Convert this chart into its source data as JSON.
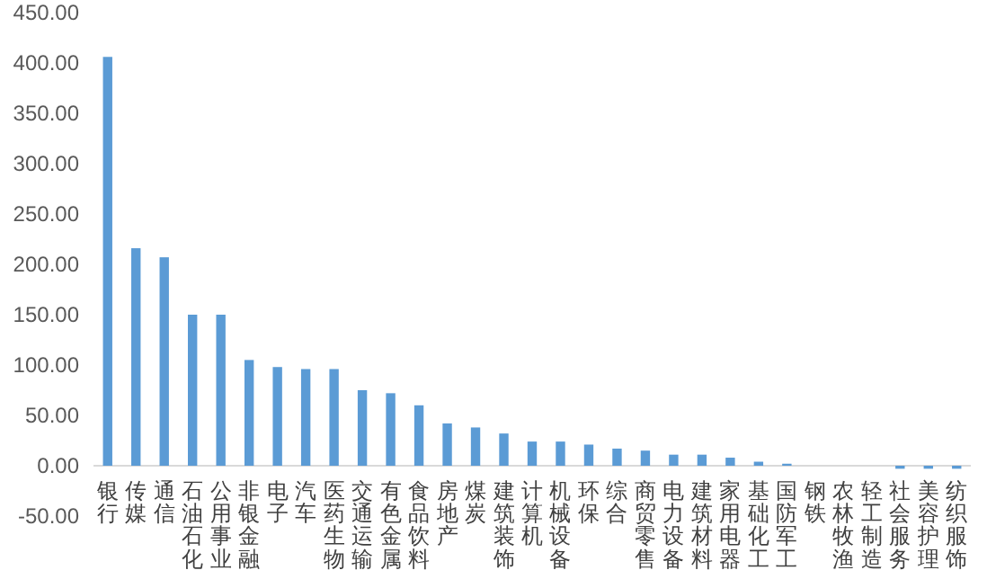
{
  "chart_data": {
    "type": "bar",
    "categories": [
      "银行",
      "传媒",
      "通信",
      "石油石化",
      "公用事业",
      "非银金融",
      "电子",
      "汽车",
      "医药生物",
      "交通运输",
      "有色金属",
      "食品饮料",
      "房地产",
      "煤炭",
      "建筑装饰",
      "计算机",
      "机械设备",
      "环保",
      "综合",
      "商贸零售",
      "电力设备",
      "建筑材料",
      "家用电器",
      "基础化工",
      "国防军工",
      "钢铁",
      "农林牧渔",
      "轻工制造",
      "社会服务",
      "美容护理",
      "纺织服饰"
    ],
    "values": [
      406,
      216,
      207,
      150,
      150,
      105,
      98,
      96,
      96,
      75,
      72,
      60,
      42,
      38,
      32,
      24,
      24,
      21,
      17,
      15,
      11,
      11,
      8,
      4,
      2,
      0,
      0,
      0,
      -3,
      -3,
      -3
    ],
    "color": "#5b9bd5",
    "ylim": [
      -50,
      450
    ],
    "yticks": [
      {
        "value": -50,
        "label": "-50.00"
      },
      {
        "value": 0,
        "label": "0.00"
      },
      {
        "value": 50,
        "label": "50.00"
      },
      {
        "value": 100,
        "label": "100.00"
      },
      {
        "value": 150,
        "label": "150.00"
      },
      {
        "value": 200,
        "label": "200.00"
      },
      {
        "value": 250,
        "label": "250.00"
      },
      {
        "value": 300,
        "label": "300.00"
      },
      {
        "value": 350,
        "label": "350.00"
      },
      {
        "value": 400,
        "label": "400.00"
      },
      {
        "value": 450,
        "label": "450.00"
      }
    ],
    "grid": false
  }
}
